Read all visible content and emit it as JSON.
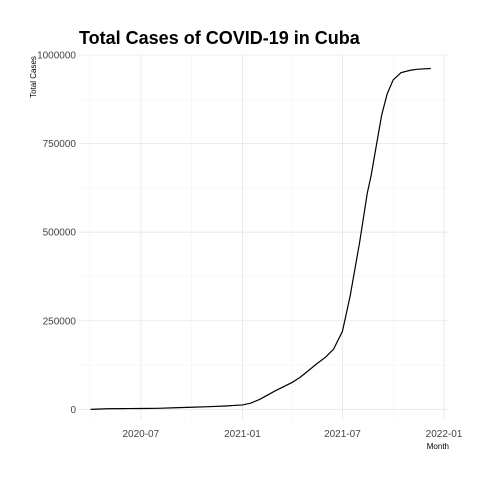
{
  "chart_data": {
    "type": "line",
    "title": "Total Cases of COVID-19 in Cuba",
    "xlabel": "Month",
    "ylabel": "Total Cases",
    "x_axis": {
      "type": "date",
      "range": [
        "2020-03-11",
        "2022-01-10"
      ],
      "ticks": [
        "2020-07-01",
        "2021-01-01",
        "2021-07-01",
        "2022-01-01"
      ],
      "tick_labels": [
        "2020-07",
        "2021-01",
        "2021-07",
        "2022-01"
      ]
    },
    "y_axis": {
      "range": [
        -30000,
        1000000
      ],
      "ticks": [
        0,
        250000,
        500000,
        750000,
        1000000
      ],
      "tick_labels": [
        "0",
        "250000",
        "500000",
        "750000",
        "1000000"
      ]
    },
    "grid": true,
    "series": [
      {
        "points": [
          [
            "2020-04-01",
            0
          ],
          [
            "2020-05-01",
            1800
          ],
          [
            "2020-06-01",
            2200
          ],
          [
            "2020-07-01",
            2400
          ],
          [
            "2020-08-01",
            3000
          ],
          [
            "2020-09-01",
            4500
          ],
          [
            "2020-10-01",
            6000
          ],
          [
            "2020-11-01",
            7500
          ],
          [
            "2020-12-01",
            9500
          ],
          [
            "2021-01-01",
            12500
          ],
          [
            "2021-01-15",
            17000
          ],
          [
            "2021-02-01",
            28000
          ],
          [
            "2021-02-15",
            40000
          ],
          [
            "2021-03-01",
            52000
          ],
          [
            "2021-03-15",
            63000
          ],
          [
            "2021-04-01",
            76000
          ],
          [
            "2021-04-15",
            90000
          ],
          [
            "2021-05-01",
            110000
          ],
          [
            "2021-05-15",
            128000
          ],
          [
            "2021-06-01",
            148000
          ],
          [
            "2021-06-15",
            170000
          ],
          [
            "2021-07-01",
            220000
          ],
          [
            "2021-07-15",
            320000
          ],
          [
            "2021-08-01",
            470000
          ],
          [
            "2021-08-10",
            560000
          ],
          [
            "2021-08-15",
            610000
          ],
          [
            "2021-08-22",
            660000
          ],
          [
            "2021-09-01",
            750000
          ],
          [
            "2021-09-10",
            830000
          ],
          [
            "2021-09-20",
            890000
          ],
          [
            "2021-10-01",
            930000
          ],
          [
            "2021-10-15",
            950000
          ],
          [
            "2021-11-01",
            957000
          ],
          [
            "2021-11-15",
            960000
          ],
          [
            "2021-12-08",
            962000
          ]
        ]
      }
    ]
  }
}
